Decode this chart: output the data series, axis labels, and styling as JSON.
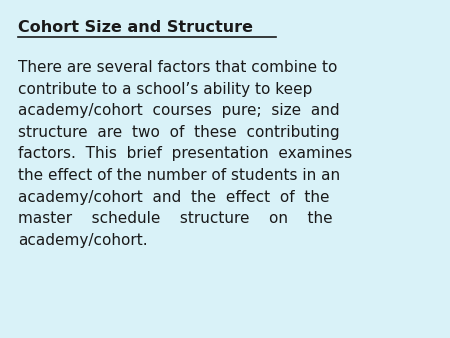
{
  "title": "Cohort Size and Structure",
  "body_lines": [
    "There are several factors that combine to",
    "contribute to a school’s ability to keep",
    "academy/cohort  courses  pure;  size  and",
    "structure  are  two  of  these  contributing",
    "factors.  This  brief  presentation  examines",
    "the effect of the number of students in an",
    "academy/cohort  and  the  effect  of  the",
    "master    schedule    structure    on    the",
    "academy/cohort."
  ],
  "background_color": "#d9f2f8",
  "text_color": "#1a1a1a",
  "title_fontsize": 11.5,
  "body_fontsize": 11.0,
  "font_family": "DejaVu Sans"
}
